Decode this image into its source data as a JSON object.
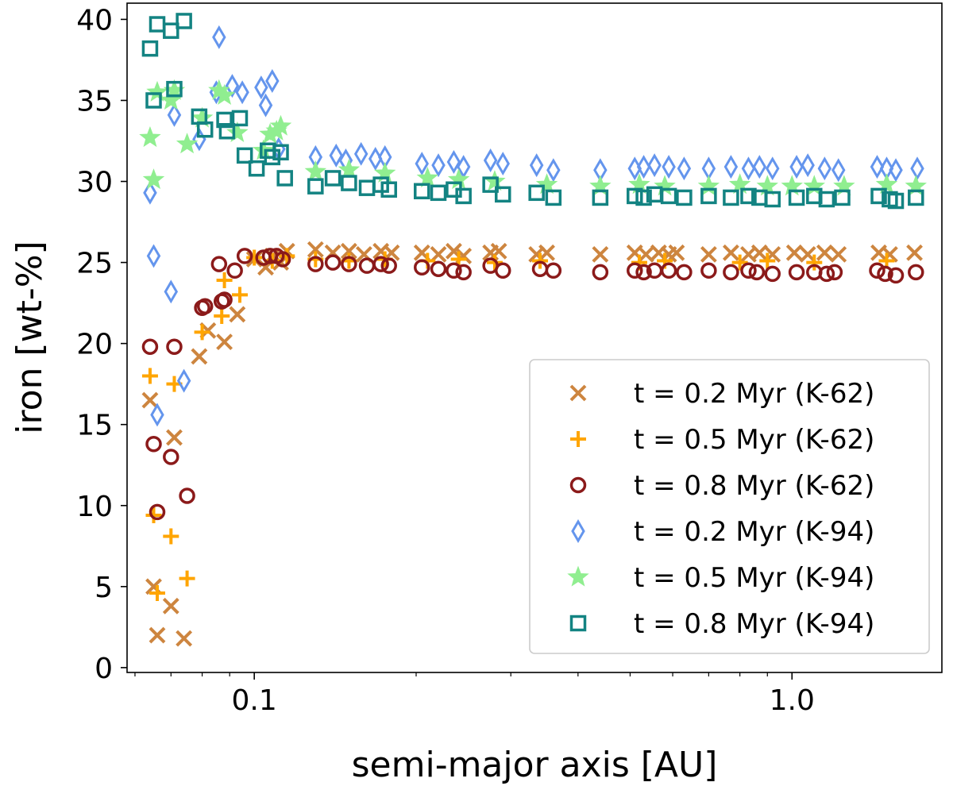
{
  "chart_data": {
    "type": "scatter",
    "title": "",
    "xlabel": "semi-major axis [AU]",
    "ylabel": "iron [wt-%]",
    "xscale": "log",
    "xlim": [
      0.058,
      1.9
    ],
    "ylim": [
      -0.3,
      41
    ],
    "yticks": [
      0,
      5,
      10,
      15,
      20,
      25,
      30,
      35,
      40
    ],
    "xticks": [
      {
        "value": 0.1,
        "label": "0.1"
      },
      {
        "value": 1.0,
        "label": "1.0"
      }
    ],
    "legend_position": "lower-right",
    "series": [
      {
        "name": "t = 0.2 Myr (K-62)",
        "marker": "x",
        "color": "#cd853f",
        "points": [
          [
            0.064,
            16.5
          ],
          [
            0.065,
            5.0
          ],
          [
            0.066,
            2.0
          ],
          [
            0.07,
            3.8
          ],
          [
            0.071,
            14.2
          ],
          [
            0.074,
            1.8
          ],
          [
            0.079,
            19.2
          ],
          [
            0.082,
            20.8
          ],
          [
            0.088,
            20.1
          ],
          [
            0.093,
            21.8
          ],
          [
            0.1,
            25.2
          ],
          [
            0.105,
            24.7
          ],
          [
            0.108,
            25.4
          ],
          [
            0.112,
            25.0
          ],
          [
            0.115,
            25.7
          ],
          [
            0.13,
            25.8
          ],
          [
            0.14,
            25.6
          ],
          [
            0.15,
            25.7
          ],
          [
            0.16,
            25.5
          ],
          [
            0.172,
            25.7
          ],
          [
            0.18,
            25.6
          ],
          [
            0.205,
            25.6
          ],
          [
            0.22,
            25.5
          ],
          [
            0.235,
            25.7
          ],
          [
            0.245,
            25.4
          ],
          [
            0.275,
            25.6
          ],
          [
            0.285,
            25.7
          ],
          [
            0.335,
            25.5
          ],
          [
            0.35,
            25.6
          ],
          [
            0.44,
            25.5
          ],
          [
            0.51,
            25.6
          ],
          [
            0.535,
            25.5
          ],
          [
            0.565,
            25.6
          ],
          [
            0.59,
            25.5
          ],
          [
            0.61,
            25.6
          ],
          [
            0.7,
            25.5
          ],
          [
            0.77,
            25.6
          ],
          [
            0.83,
            25.5
          ],
          [
            0.87,
            25.6
          ],
          [
            0.92,
            25.5
          ],
          [
            1.01,
            25.6
          ],
          [
            1.07,
            25.5
          ],
          [
            1.15,
            25.6
          ],
          [
            1.22,
            25.5
          ],
          [
            1.45,
            25.6
          ],
          [
            1.52,
            25.5
          ],
          [
            1.69,
            25.6
          ]
        ]
      },
      {
        "name": "t = 0.5 Myr (K-62)",
        "marker": "+",
        "color": "#ffa500",
        "points": [
          [
            0.064,
            18.0
          ],
          [
            0.065,
            9.4
          ],
          [
            0.066,
            4.6
          ],
          [
            0.07,
            8.1
          ],
          [
            0.071,
            17.5
          ],
          [
            0.075,
            5.5
          ],
          [
            0.08,
            20.7
          ],
          [
            0.087,
            21.7
          ],
          [
            0.088,
            23.9
          ],
          [
            0.094,
            23.0
          ],
          [
            0.1,
            25.3
          ],
          [
            0.108,
            25.1
          ],
          [
            0.115,
            25.4
          ],
          [
            0.13,
            25.2
          ],
          [
            0.15,
            25.1
          ],
          [
            0.175,
            25.2
          ],
          [
            0.21,
            25.1
          ],
          [
            0.24,
            25.2
          ],
          [
            0.28,
            25.0
          ],
          [
            0.34,
            25.1
          ],
          [
            0.52,
            25.0
          ],
          [
            0.58,
            25.1
          ],
          [
            0.8,
            25.0
          ],
          [
            0.9,
            25.1
          ],
          [
            1.1,
            25.0
          ],
          [
            1.5,
            25.1
          ]
        ]
      },
      {
        "name": "t = 0.8 Myr (K-62)",
        "marker": "o",
        "color": "#8b1a1a",
        "points": [
          [
            0.064,
            19.8
          ],
          [
            0.065,
            13.8
          ],
          [
            0.066,
            9.6
          ],
          [
            0.07,
            13.0
          ],
          [
            0.071,
            19.8
          ],
          [
            0.075,
            10.6
          ],
          [
            0.08,
            22.2
          ],
          [
            0.081,
            22.3
          ],
          [
            0.086,
            24.9
          ],
          [
            0.087,
            22.6
          ],
          [
            0.088,
            22.7
          ],
          [
            0.092,
            24.5
          ],
          [
            0.096,
            25.4
          ],
          [
            0.104,
            25.3
          ],
          [
            0.107,
            25.4
          ],
          [
            0.11,
            25.4
          ],
          [
            0.113,
            25.2
          ],
          [
            0.13,
            24.9
          ],
          [
            0.14,
            25.0
          ],
          [
            0.15,
            24.9
          ],
          [
            0.162,
            24.8
          ],
          [
            0.172,
            24.9
          ],
          [
            0.178,
            24.8
          ],
          [
            0.205,
            24.7
          ],
          [
            0.22,
            24.6
          ],
          [
            0.235,
            24.5
          ],
          [
            0.245,
            24.4
          ],
          [
            0.275,
            24.8
          ],
          [
            0.29,
            24.5
          ],
          [
            0.34,
            24.6
          ],
          [
            0.36,
            24.5
          ],
          [
            0.44,
            24.4
          ],
          [
            0.51,
            24.5
          ],
          [
            0.53,
            24.4
          ],
          [
            0.555,
            24.5
          ],
          [
            0.59,
            24.5
          ],
          [
            0.63,
            24.4
          ],
          [
            0.7,
            24.5
          ],
          [
            0.77,
            24.4
          ],
          [
            0.83,
            24.5
          ],
          [
            0.86,
            24.4
          ],
          [
            0.92,
            24.3
          ],
          [
            1.02,
            24.4
          ],
          [
            1.1,
            24.4
          ],
          [
            1.16,
            24.3
          ],
          [
            1.2,
            24.4
          ],
          [
            1.44,
            24.5
          ],
          [
            1.49,
            24.3
          ],
          [
            1.56,
            24.2
          ],
          [
            1.7,
            24.4
          ]
        ]
      },
      {
        "name": "t = 0.2 Myr (K-94)",
        "marker": "d",
        "color": "#6495ed",
        "points": [
          [
            0.064,
            29.3
          ],
          [
            0.065,
            25.4
          ],
          [
            0.066,
            15.6
          ],
          [
            0.07,
            23.2
          ],
          [
            0.071,
            34.1
          ],
          [
            0.074,
            17.7
          ],
          [
            0.079,
            32.6
          ],
          [
            0.085,
            35.5
          ],
          [
            0.086,
            38.9
          ],
          [
            0.091,
            35.9
          ],
          [
            0.095,
            35.5
          ],
          [
            0.103,
            35.8
          ],
          [
            0.105,
            34.7
          ],
          [
            0.108,
            36.2
          ],
          [
            0.111,
            32.0
          ],
          [
            0.13,
            31.5
          ],
          [
            0.142,
            31.6
          ],
          [
            0.148,
            31.3
          ],
          [
            0.158,
            31.7
          ],
          [
            0.168,
            31.4
          ],
          [
            0.175,
            31.5
          ],
          [
            0.205,
            31.1
          ],
          [
            0.22,
            31.0
          ],
          [
            0.235,
            31.2
          ],
          [
            0.245,
            30.9
          ],
          [
            0.275,
            31.3
          ],
          [
            0.29,
            31.1
          ],
          [
            0.335,
            31.0
          ],
          [
            0.36,
            30.7
          ],
          [
            0.44,
            30.7
          ],
          [
            0.51,
            30.8
          ],
          [
            0.53,
            30.9
          ],
          [
            0.555,
            31.0
          ],
          [
            0.59,
            30.9
          ],
          [
            0.63,
            30.8
          ],
          [
            0.7,
            30.8
          ],
          [
            0.77,
            30.9
          ],
          [
            0.83,
            30.8
          ],
          [
            0.87,
            30.9
          ],
          [
            0.92,
            30.8
          ],
          [
            1.02,
            30.9
          ],
          [
            1.07,
            31.0
          ],
          [
            1.15,
            30.8
          ],
          [
            1.22,
            30.7
          ],
          [
            1.44,
            30.9
          ],
          [
            1.5,
            30.8
          ],
          [
            1.56,
            30.7
          ],
          [
            1.71,
            30.8
          ]
        ]
      },
      {
        "name": "t = 0.5 Myr (K-94)",
        "marker": "*",
        "color": "#90ee90",
        "points": [
          [
            0.064,
            32.7
          ],
          [
            0.065,
            30.1
          ],
          [
            0.066,
            35.5
          ],
          [
            0.07,
            35.0
          ],
          [
            0.071,
            35.6
          ],
          [
            0.075,
            32.3
          ],
          [
            0.08,
            33.9
          ],
          [
            0.086,
            35.6
          ],
          [
            0.088,
            35.3
          ],
          [
            0.093,
            33.0
          ],
          [
            0.104,
            31.9
          ],
          [
            0.107,
            32.9
          ],
          [
            0.11,
            33.1
          ],
          [
            0.112,
            33.4
          ],
          [
            0.13,
            30.6
          ],
          [
            0.15,
            30.7
          ],
          [
            0.175,
            30.5
          ],
          [
            0.21,
            30.2
          ],
          [
            0.24,
            30.1
          ],
          [
            0.28,
            30.0
          ],
          [
            0.35,
            29.8
          ],
          [
            0.44,
            29.7
          ],
          [
            0.52,
            29.8
          ],
          [
            0.58,
            29.7
          ],
          [
            0.7,
            29.7
          ],
          [
            0.8,
            29.8
          ],
          [
            0.9,
            29.7
          ],
          [
            1.0,
            29.7
          ],
          [
            1.1,
            29.7
          ],
          [
            1.25,
            29.7
          ],
          [
            1.5,
            29.8
          ],
          [
            1.7,
            29.7
          ]
        ]
      },
      {
        "name": "t = 0.8 Myr (K-94)",
        "marker": "s",
        "color": "#138382",
        "points": [
          [
            0.064,
            38.2
          ],
          [
            0.065,
            35.0
          ],
          [
            0.066,
            39.7
          ],
          [
            0.07,
            39.3
          ],
          [
            0.071,
            35.7
          ],
          [
            0.074,
            39.9
          ],
          [
            0.079,
            34.0
          ],
          [
            0.081,
            33.2
          ],
          [
            0.088,
            33.8
          ],
          [
            0.089,
            33.1
          ],
          [
            0.094,
            33.9
          ],
          [
            0.096,
            31.6
          ],
          [
            0.101,
            30.8
          ],
          [
            0.106,
            31.9
          ],
          [
            0.108,
            31.5
          ],
          [
            0.112,
            31.8
          ],
          [
            0.114,
            30.2
          ],
          [
            0.13,
            29.7
          ],
          [
            0.14,
            30.2
          ],
          [
            0.15,
            29.9
          ],
          [
            0.162,
            29.6
          ],
          [
            0.172,
            29.8
          ],
          [
            0.178,
            29.5
          ],
          [
            0.205,
            29.4
          ],
          [
            0.22,
            29.3
          ],
          [
            0.235,
            29.5
          ],
          [
            0.245,
            29.1
          ],
          [
            0.275,
            29.8
          ],
          [
            0.29,
            29.2
          ],
          [
            0.335,
            29.3
          ],
          [
            0.36,
            29.0
          ],
          [
            0.44,
            29.0
          ],
          [
            0.51,
            29.1
          ],
          [
            0.53,
            29.0
          ],
          [
            0.555,
            29.2
          ],
          [
            0.59,
            29.1
          ],
          [
            0.63,
            29.0
          ],
          [
            0.7,
            29.1
          ],
          [
            0.77,
            29.0
          ],
          [
            0.83,
            29.1
          ],
          [
            0.87,
            29.0
          ],
          [
            0.92,
            28.9
          ],
          [
            1.02,
            29.0
          ],
          [
            1.1,
            29.1
          ],
          [
            1.16,
            28.9
          ],
          [
            1.24,
            29.0
          ],
          [
            1.45,
            29.1
          ],
          [
            1.52,
            28.9
          ],
          [
            1.56,
            28.8
          ],
          [
            1.7,
            29.0
          ]
        ]
      }
    ]
  }
}
